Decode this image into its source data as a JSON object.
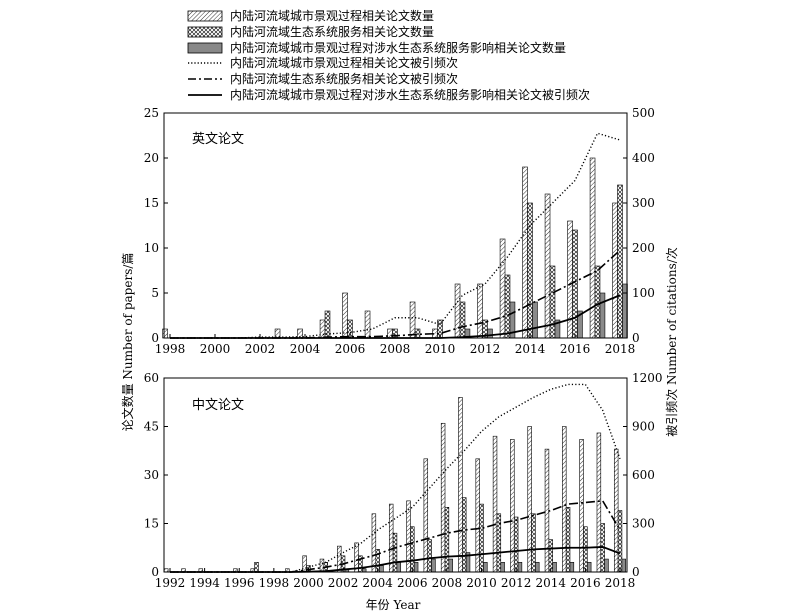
{
  "legend": {
    "items": [
      {
        "key": "urban_papers",
        "label": "内陆河流域城市景观过程相关论文数量",
        "kind": "bar-hatch"
      },
      {
        "key": "eco_papers",
        "label": "内陆河流域生态系统服务相关论文数量",
        "kind": "bar-cross"
      },
      {
        "key": "impact_papers",
        "label": "内陆河流域城市景观过程对涉水生态系统服务影响相关论文数量",
        "kind": "bar-gray"
      },
      {
        "key": "urban_cites",
        "label": "内陆河流域城市景观过程相关论文被引频次",
        "kind": "line-dotted"
      },
      {
        "key": "eco_cites",
        "label": "内陆河流域生态系统服务相关论文被引频次",
        "kind": "line-dashdot"
      },
      {
        "key": "impact_cites",
        "label": "内陆河流域城市景观过程对涉水生态系统服务影响相关论文被引频次",
        "kind": "line-solid"
      }
    ]
  },
  "axes_text": {
    "ylabel_left": "论文数量 Number of papers/篇",
    "ylabel_right": "被引频次 Number of citations/次",
    "xlabel": "年份 Year"
  },
  "chart_data": [
    {
      "type": "bar",
      "panel_label": "英文论文",
      "x": [
        1998,
        1999,
        2000,
        2001,
        2002,
        2003,
        2004,
        2005,
        2006,
        2007,
        2008,
        2009,
        2010,
        2011,
        2012,
        2013,
        2014,
        2015,
        2016,
        2017,
        2018
      ],
      "x_ticks": [
        1998,
        2000,
        2002,
        2004,
        2006,
        2008,
        2010,
        2012,
        2014,
        2016,
        2018
      ],
      "ylim_left": [
        0,
        25
      ],
      "y_ticks_left": [
        0,
        5,
        10,
        15,
        20,
        25
      ],
      "ylim_right": [
        0,
        500
      ],
      "y_ticks_right": [
        0,
        100,
        200,
        300,
        400,
        500
      ],
      "series": [
        {
          "key": "urban_papers",
          "axis": "left",
          "values": [
            1,
            0,
            0,
            0,
            0,
            1,
            1,
            2,
            5,
            3,
            1,
            4,
            1,
            6,
            6,
            11,
            19,
            16,
            13,
            20,
            15
          ]
        },
        {
          "key": "eco_papers",
          "axis": "left",
          "values": [
            0,
            0,
            0,
            0,
            0,
            0,
            0,
            3,
            2,
            0,
            1,
            1,
            2,
            4,
            2,
            7,
            15,
            8,
            12,
            8,
            17
          ]
        },
        {
          "key": "impact_papers",
          "axis": "left",
          "values": [
            0,
            0,
            0,
            0,
            0,
            0,
            0,
            0,
            0,
            0,
            0,
            0,
            0,
            1,
            1,
            4,
            4,
            2,
            3,
            5,
            6
          ]
        },
        {
          "key": "urban_cites",
          "axis": "right",
          "values": [
            0,
            0,
            0,
            0,
            2,
            2,
            3,
            9,
            12,
            20,
            45,
            45,
            30,
            95,
            120,
            180,
            250,
            300,
            350,
            455,
            440
          ]
        },
        {
          "key": "eco_cites",
          "axis": "right",
          "values": [
            0,
            0,
            0,
            0,
            0,
            0,
            0,
            2,
            3,
            3,
            5,
            8,
            10,
            25,
            35,
            50,
            75,
            100,
            125,
            150,
            195
          ]
        },
        {
          "key": "impact_cites",
          "axis": "right",
          "values": [
            0,
            0,
            0,
            0,
            0,
            0,
            0,
            0,
            0,
            0,
            0,
            0,
            0,
            2,
            5,
            10,
            20,
            30,
            45,
            75,
            95
          ]
        }
      ]
    },
    {
      "type": "bar",
      "panel_label": "中文论文",
      "x": [
        1992,
        1993,
        1994,
        1995,
        1996,
        1997,
        1998,
        1999,
        2000,
        2001,
        2002,
        2003,
        2004,
        2005,
        2006,
        2007,
        2008,
        2009,
        2010,
        2011,
        2012,
        2013,
        2014,
        2015,
        2016,
        2017,
        2018
      ],
      "x_ticks": [
        1992,
        1994,
        1996,
        1998,
        2000,
        2002,
        2004,
        2006,
        2008,
        2010,
        2012,
        2014,
        2016,
        2018
      ],
      "ylim_left": [
        0,
        60
      ],
      "y_ticks_left": [
        0,
        15,
        30,
        45,
        60
      ],
      "ylim_right": [
        0,
        1200
      ],
      "y_ticks_right": [
        0,
        300,
        600,
        900,
        1200
      ],
      "series": [
        {
          "key": "urban_papers",
          "axis": "left",
          "values": [
            1,
            1,
            1,
            0,
            1,
            1,
            0,
            1,
            5,
            4,
            8,
            9,
            18,
            21,
            22,
            35,
            46,
            54,
            35,
            42,
            41,
            45,
            38,
            45,
            41,
            43,
            38
          ]
        },
        {
          "key": "eco_papers",
          "axis": "left",
          "values": [
            0,
            0,
            0,
            0,
            0,
            3,
            0,
            0,
            2,
            3,
            5,
            5,
            7,
            12,
            14,
            10,
            20,
            23,
            21,
            18,
            17,
            18,
            10,
            20,
            14,
            15,
            19
          ]
        },
        {
          "key": "impact_papers",
          "axis": "left",
          "values": [
            0,
            0,
            0,
            0,
            0,
            0,
            0,
            0,
            0,
            0,
            1,
            1,
            2,
            3,
            3,
            4,
            4,
            6,
            3,
            3,
            3,
            3,
            3,
            3,
            3,
            4,
            4
          ]
        },
        {
          "key": "urban_cites",
          "axis": "right",
          "values": [
            0,
            0,
            0,
            0,
            0,
            0,
            0,
            0,
            30,
            60,
            120,
            175,
            260,
            330,
            400,
            520,
            640,
            750,
            870,
            960,
            1020,
            1080,
            1130,
            1160,
            1160,
            1000,
            700
          ]
        },
        {
          "key": "eco_cites",
          "axis": "right",
          "values": [
            0,
            0,
            0,
            0,
            0,
            0,
            0,
            0,
            15,
            30,
            50,
            80,
            110,
            150,
            180,
            210,
            240,
            260,
            270,
            300,
            320,
            350,
            380,
            420,
            430,
            440,
            260
          ]
        },
        {
          "key": "impact_cites",
          "axis": "right",
          "values": [
            0,
            0,
            0,
            0,
            0,
            0,
            0,
            0,
            2,
            5,
            15,
            25,
            40,
            60,
            70,
            85,
            95,
            100,
            110,
            120,
            130,
            140,
            145,
            150,
            150,
            155,
            115
          ]
        }
      ]
    }
  ]
}
